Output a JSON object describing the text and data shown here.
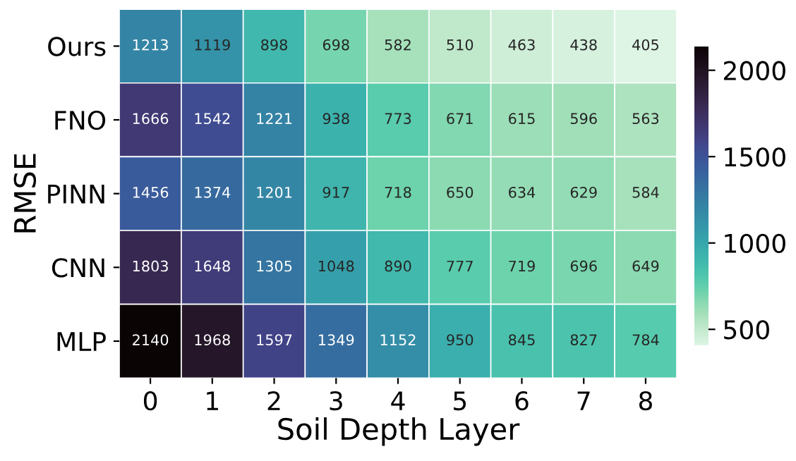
{
  "chart_data": {
    "type": "heatmap",
    "xlabel": "Soil Depth Layer",
    "ylabel": "RMSE",
    "categories": [
      "0",
      "1",
      "2",
      "3",
      "4",
      "5",
      "6",
      "7",
      "8"
    ],
    "y_categories": [
      "Ours",
      "FNO",
      "PINN",
      "CNN",
      "MLP"
    ],
    "cells": [
      [
        1213,
        1119,
        898,
        698,
        582,
        510,
        463,
        438,
        405
      ],
      [
        1666,
        1542,
        1221,
        938,
        773,
        671,
        615,
        596,
        563
      ],
      [
        1456,
        1374,
        1201,
        917,
        718,
        650,
        634,
        629,
        584
      ],
      [
        1803,
        1648,
        1305,
        1048,
        890,
        777,
        719,
        696,
        649
      ],
      [
        2140,
        1968,
        1597,
        1349,
        1152,
        950,
        845,
        827,
        784
      ]
    ],
    "data_labels": true,
    "clim": [
      405,
      2140
    ],
    "cticks": [
      500,
      1000,
      1500,
      2000
    ]
  }
}
